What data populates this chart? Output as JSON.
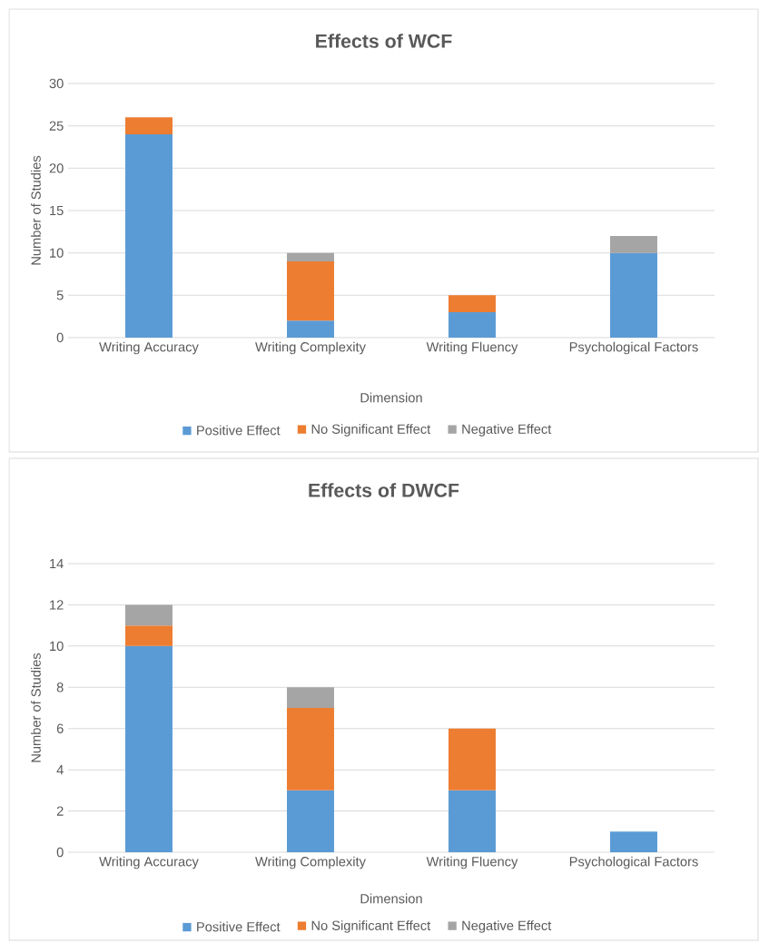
{
  "chart_data": [
    {
      "type": "bar",
      "stacked": true,
      "title": "Effects of WCF",
      "xlabel": "Dimension",
      "ylabel": "Number of Studies",
      "categories": [
        "Writing Accuracy",
        "Writing Complexity",
        "Writing Fluency",
        "Psychological Factors"
      ],
      "series": [
        {
          "name": "Positive Effect",
          "color": "#5b9bd5",
          "values": [
            24,
            2,
            3,
            10
          ]
        },
        {
          "name": "No Significant Effect",
          "color": "#ed7d31",
          "values": [
            2,
            7,
            2,
            null
          ]
        },
        {
          "name": "Negative Effect",
          "color": "#a5a5a5",
          "values": [
            null,
            1,
            null,
            2
          ]
        }
      ],
      "ylim": [
        0,
        30
      ],
      "yticks": [
        0,
        5,
        10,
        15,
        20,
        25,
        30
      ],
      "grid": "y",
      "legend": "bottom"
    },
    {
      "type": "bar",
      "stacked": true,
      "title": "Effects of DWCF",
      "xlabel": "Dimension",
      "ylabel": "Number of Studies",
      "categories": [
        "Writing Accuracy",
        "Writing Complexity",
        "Writing Fluency",
        "Psychological Factors"
      ],
      "series": [
        {
          "name": "Positive Effect",
          "color": "#5b9bd5",
          "values": [
            10,
            3,
            3,
            1
          ]
        },
        {
          "name": "No Significant Effect",
          "color": "#ed7d31",
          "values": [
            1,
            4,
            3,
            null
          ]
        },
        {
          "name": "Negative Effect",
          "color": "#a5a5a5",
          "values": [
            1,
            1,
            null,
            null
          ]
        }
      ],
      "ylim": [
        0,
        14
      ],
      "yticks": [
        0,
        2,
        4,
        6,
        8,
        10,
        12,
        14
      ],
      "grid": "y",
      "legend": "bottom"
    }
  ]
}
